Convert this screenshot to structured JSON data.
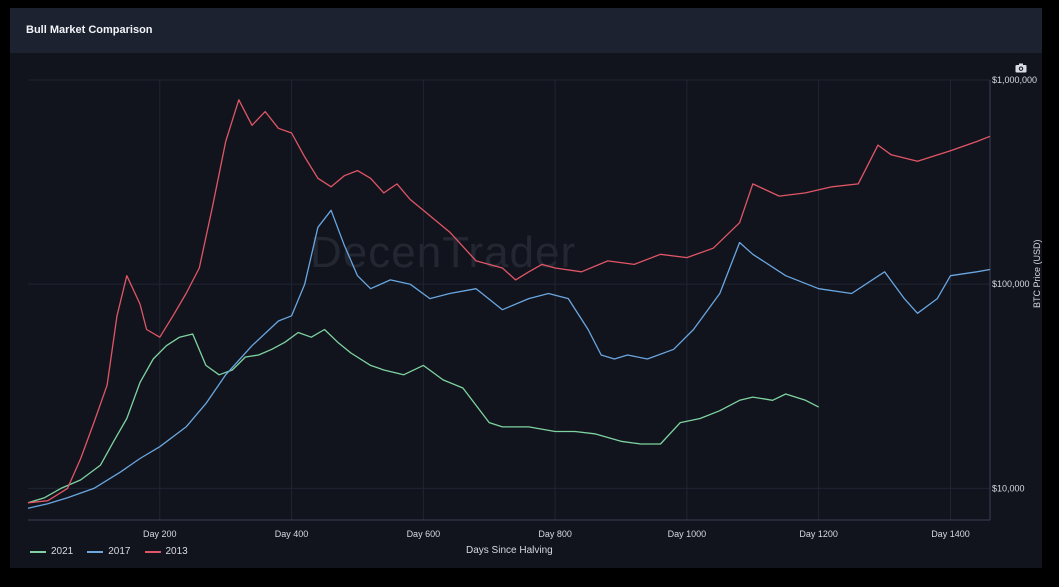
{
  "panel": {
    "title": "Bull Market Comparison",
    "watermark": "DecenTrader"
  },
  "chart_data": {
    "type": "line",
    "xlabel": "Days Since Halving",
    "ylabel": "BTC Price (USD)",
    "yscale": "log",
    "xlim": [
      0,
      1460
    ],
    "ylim": [
      7000,
      1000000
    ],
    "x_ticks": [
      {
        "value": 200,
        "label": "Day 200"
      },
      {
        "value": 400,
        "label": "Day 400"
      },
      {
        "value": 600,
        "label": "Day 600"
      },
      {
        "value": 800,
        "label": "Day 800"
      },
      {
        "value": 1000,
        "label": "Day 1000"
      },
      {
        "value": 1200,
        "label": "Day 1200"
      },
      {
        "value": 1400,
        "label": "Day 1400"
      }
    ],
    "y_ticks": [
      {
        "value": 10000,
        "label": "$10,000"
      },
      {
        "value": 100000,
        "label": "$100,000"
      },
      {
        "value": 1000000,
        "label": "$1,000,000"
      }
    ],
    "grid": true,
    "legend_position": "bottom-left",
    "series": [
      {
        "name": "2021",
        "color": "#7fd3a0",
        "x": [
          0,
          25,
          50,
          80,
          110,
          130,
          150,
          170,
          190,
          210,
          230,
          250,
          270,
          290,
          310,
          330,
          350,
          370,
          390,
          410,
          430,
          450,
          470,
          490,
          520,
          540,
          570,
          600,
          630,
          660,
          700,
          720,
          760,
          800,
          830,
          860,
          900,
          930,
          960,
          990,
          1020,
          1050,
          1080,
          1100,
          1130,
          1150,
          1180,
          1200
        ],
        "y": [
          8500,
          9000,
          10000,
          11000,
          13000,
          17000,
          22000,
          33000,
          43000,
          50000,
          55000,
          57000,
          40000,
          36000,
          38000,
          44000,
          45000,
          48000,
          52000,
          58000,
          55000,
          60000,
          52000,
          46000,
          40000,
          38000,
          36000,
          40000,
          34000,
          31000,
          21000,
          20000,
          20000,
          19000,
          19000,
          18500,
          17000,
          16500,
          16500,
          21000,
          22000,
          24000,
          27000,
          28000,
          27000,
          29000,
          27000,
          25000
        ]
      },
      {
        "name": "2017",
        "color": "#6aa6e0",
        "x": [
          0,
          30,
          60,
          100,
          140,
          170,
          200,
          240,
          270,
          300,
          340,
          380,
          400,
          420,
          440,
          460,
          480,
          500,
          520,
          550,
          580,
          610,
          640,
          680,
          720,
          760,
          790,
          820,
          850,
          870,
          890,
          910,
          940,
          980,
          1010,
          1050,
          1080,
          1100,
          1150,
          1200,
          1250,
          1300,
          1330,
          1350,
          1380,
          1400,
          1440,
          1460
        ],
        "y": [
          8000,
          8400,
          9000,
          10000,
          12000,
          14000,
          16000,
          20000,
          26000,
          36000,
          50000,
          66000,
          70000,
          100000,
          190000,
          230000,
          155000,
          110000,
          95000,
          105000,
          100000,
          85000,
          90000,
          95000,
          75000,
          85000,
          90000,
          85000,
          60000,
          45000,
          43000,
          45000,
          43000,
          48000,
          60000,
          90000,
          160000,
          140000,
          110000,
          95000,
          90000,
          115000,
          85000,
          72000,
          85000,
          110000,
          115000,
          118000
        ]
      },
      {
        "name": "2013",
        "color": "#e05666",
        "x": [
          0,
          30,
          60,
          80,
          100,
          120,
          135,
          150,
          170,
          180,
          200,
          220,
          240,
          260,
          280,
          300,
          320,
          340,
          360,
          380,
          400,
          420,
          440,
          460,
          480,
          500,
          520,
          540,
          560,
          580,
          600,
          640,
          680,
          720,
          740,
          760,
          780,
          800,
          840,
          880,
          920,
          960,
          1000,
          1040,
          1080,
          1100,
          1140,
          1180,
          1220,
          1260,
          1290,
          1310,
          1350,
          1400,
          1440,
          1460
        ],
        "y": [
          8500,
          8700,
          10000,
          14000,
          21000,
          32000,
          70000,
          110000,
          80000,
          60000,
          55000,
          70000,
          90000,
          120000,
          240000,
          500000,
          800000,
          600000,
          700000,
          580000,
          550000,
          420000,
          330000,
          300000,
          340000,
          360000,
          330000,
          280000,
          310000,
          260000,
          230000,
          180000,
          130000,
          120000,
          105000,
          115000,
          125000,
          120000,
          115000,
          130000,
          125000,
          140000,
          135000,
          150000,
          200000,
          310000,
          270000,
          280000,
          300000,
          310000,
          480000,
          430000,
          400000,
          450000,
          500000,
          530000
        ]
      }
    ]
  }
}
